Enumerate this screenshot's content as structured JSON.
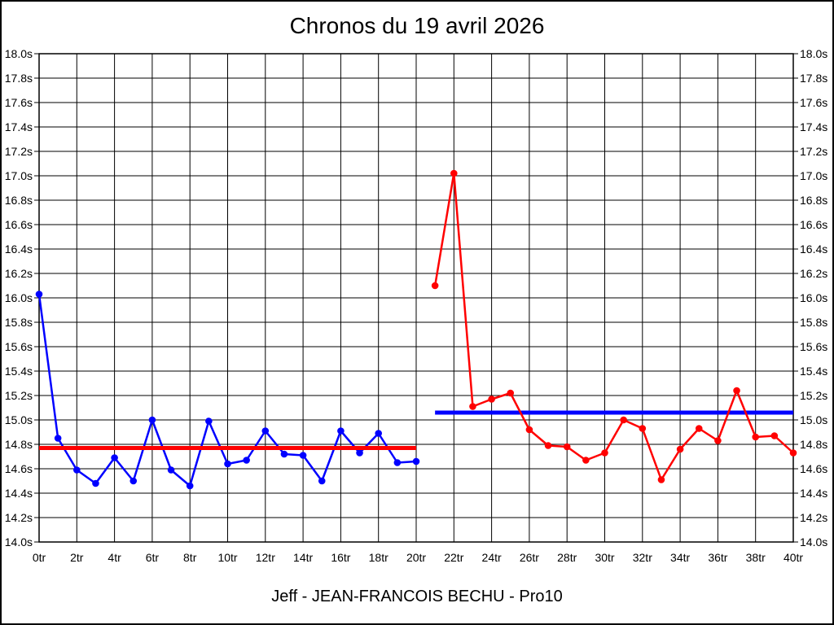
{
  "page": {
    "title": "Chronos du 19 avril 2026",
    "footer": "Jeff - JEAN-FRANCOIS BECHU - Pro10"
  },
  "chart_data": {
    "type": "line",
    "title": "Chronos du 19 avril 2026",
    "footer_label": "Jeff - JEAN-FRANCOIS BECHU - Pro10",
    "xlabel": "",
    "ylabel": "",
    "xlim": [
      0,
      40
    ],
    "x_tick_step": 2,
    "x_tick_suffix": "tr",
    "ylim": [
      14.0,
      18.0
    ],
    "y_tick_step": 0.2,
    "y_tick_suffix": "s",
    "y_tick_decimals": 1,
    "grid": true,
    "grid_color": "#000000",
    "background_color": "#ffffff",
    "text_color": "#000000",
    "legend": "none",
    "series": [
      {
        "name": "blue-series",
        "color": "#0000ff",
        "marker": "circle",
        "x": [
          0,
          1,
          2,
          3,
          4,
          5,
          6,
          7,
          8,
          9,
          10,
          11,
          12,
          13,
          14,
          15,
          16,
          17,
          18,
          19,
          20
        ],
        "values": [
          16.03,
          14.85,
          14.59,
          14.48,
          14.69,
          14.5,
          15.0,
          14.59,
          14.46,
          14.99,
          14.64,
          14.67,
          14.91,
          14.72,
          14.71,
          14.5,
          14.91,
          14.73,
          14.89,
          14.65,
          14.66
        ]
      },
      {
        "name": "red-series",
        "color": "#ff0000",
        "marker": "circle",
        "x": [
          21,
          22,
          23,
          24,
          25,
          26,
          27,
          28,
          29,
          30,
          31,
          32,
          33,
          34,
          35,
          36,
          37,
          38,
          39,
          40
        ],
        "values": [
          16.1,
          17.02,
          15.11,
          15.17,
          15.22,
          14.92,
          14.79,
          14.78,
          14.67,
          14.73,
          15.0,
          14.93,
          14.51,
          14.76,
          14.93,
          14.83,
          15.24,
          14.86,
          14.87,
          14.73
        ]
      }
    ],
    "mean_lines": [
      {
        "name": "mean-line-red",
        "color": "#ff0000",
        "value": 14.77,
        "x_start": 0,
        "x_end": 20
      },
      {
        "name": "mean-line-blue",
        "color": "#0000ff",
        "value": 15.06,
        "x_start": 21,
        "x_end": 40
      }
    ]
  }
}
